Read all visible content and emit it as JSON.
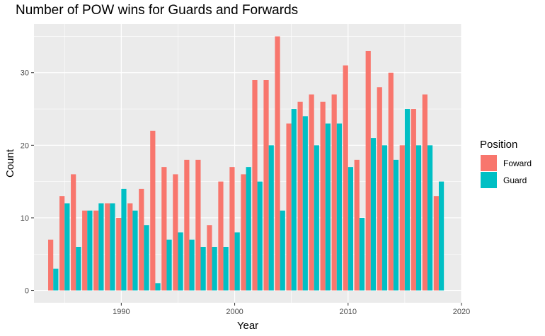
{
  "chart_data": {
    "type": "bar",
    "title": "Number of POW wins for Guards and Forwards",
    "xlabel": "Year",
    "ylabel": "Count",
    "x_ticks": [
      1990,
      2000,
      2010,
      2020
    ],
    "y_ticks": [
      0,
      10,
      20,
      30
    ],
    "xlim": [
      1982.3,
      2020.0
    ],
    "ylim": [
      -1.7,
      36.7
    ],
    "grid": true,
    "legend": {
      "title": "Position",
      "placement": "right"
    },
    "categories": [
      1984,
      1985,
      1986,
      1987,
      1988,
      1989,
      1990,
      1991,
      1992,
      1993,
      1994,
      1995,
      1996,
      1997,
      1998,
      1999,
      2000,
      2001,
      2002,
      2003,
      2004,
      2005,
      2006,
      2007,
      2008,
      2009,
      2010,
      2011,
      2012,
      2013,
      2014,
      2015,
      2016,
      2017,
      2018
    ],
    "series": [
      {
        "name": "Foward",
        "color": "#F8766D",
        "values": [
          7,
          13,
          16,
          11,
          11,
          12,
          10,
          12,
          14,
          22,
          17,
          16,
          18,
          18,
          9,
          15,
          17,
          16,
          29,
          29,
          35,
          23,
          26,
          27,
          26,
          27,
          31,
          18,
          33,
          28,
          30,
          20,
          25,
          27,
          13
        ]
      },
      {
        "name": "Guard",
        "color": "#00BFC4",
        "values": [
          3,
          12,
          6,
          11,
          12,
          12,
          14,
          11,
          9,
          1,
          7,
          8,
          7,
          6,
          6,
          6,
          8,
          17,
          15,
          20,
          11,
          25,
          24,
          20,
          23,
          23,
          17,
          10,
          21,
          20,
          18,
          25,
          20,
          20,
          15
        ]
      }
    ]
  }
}
